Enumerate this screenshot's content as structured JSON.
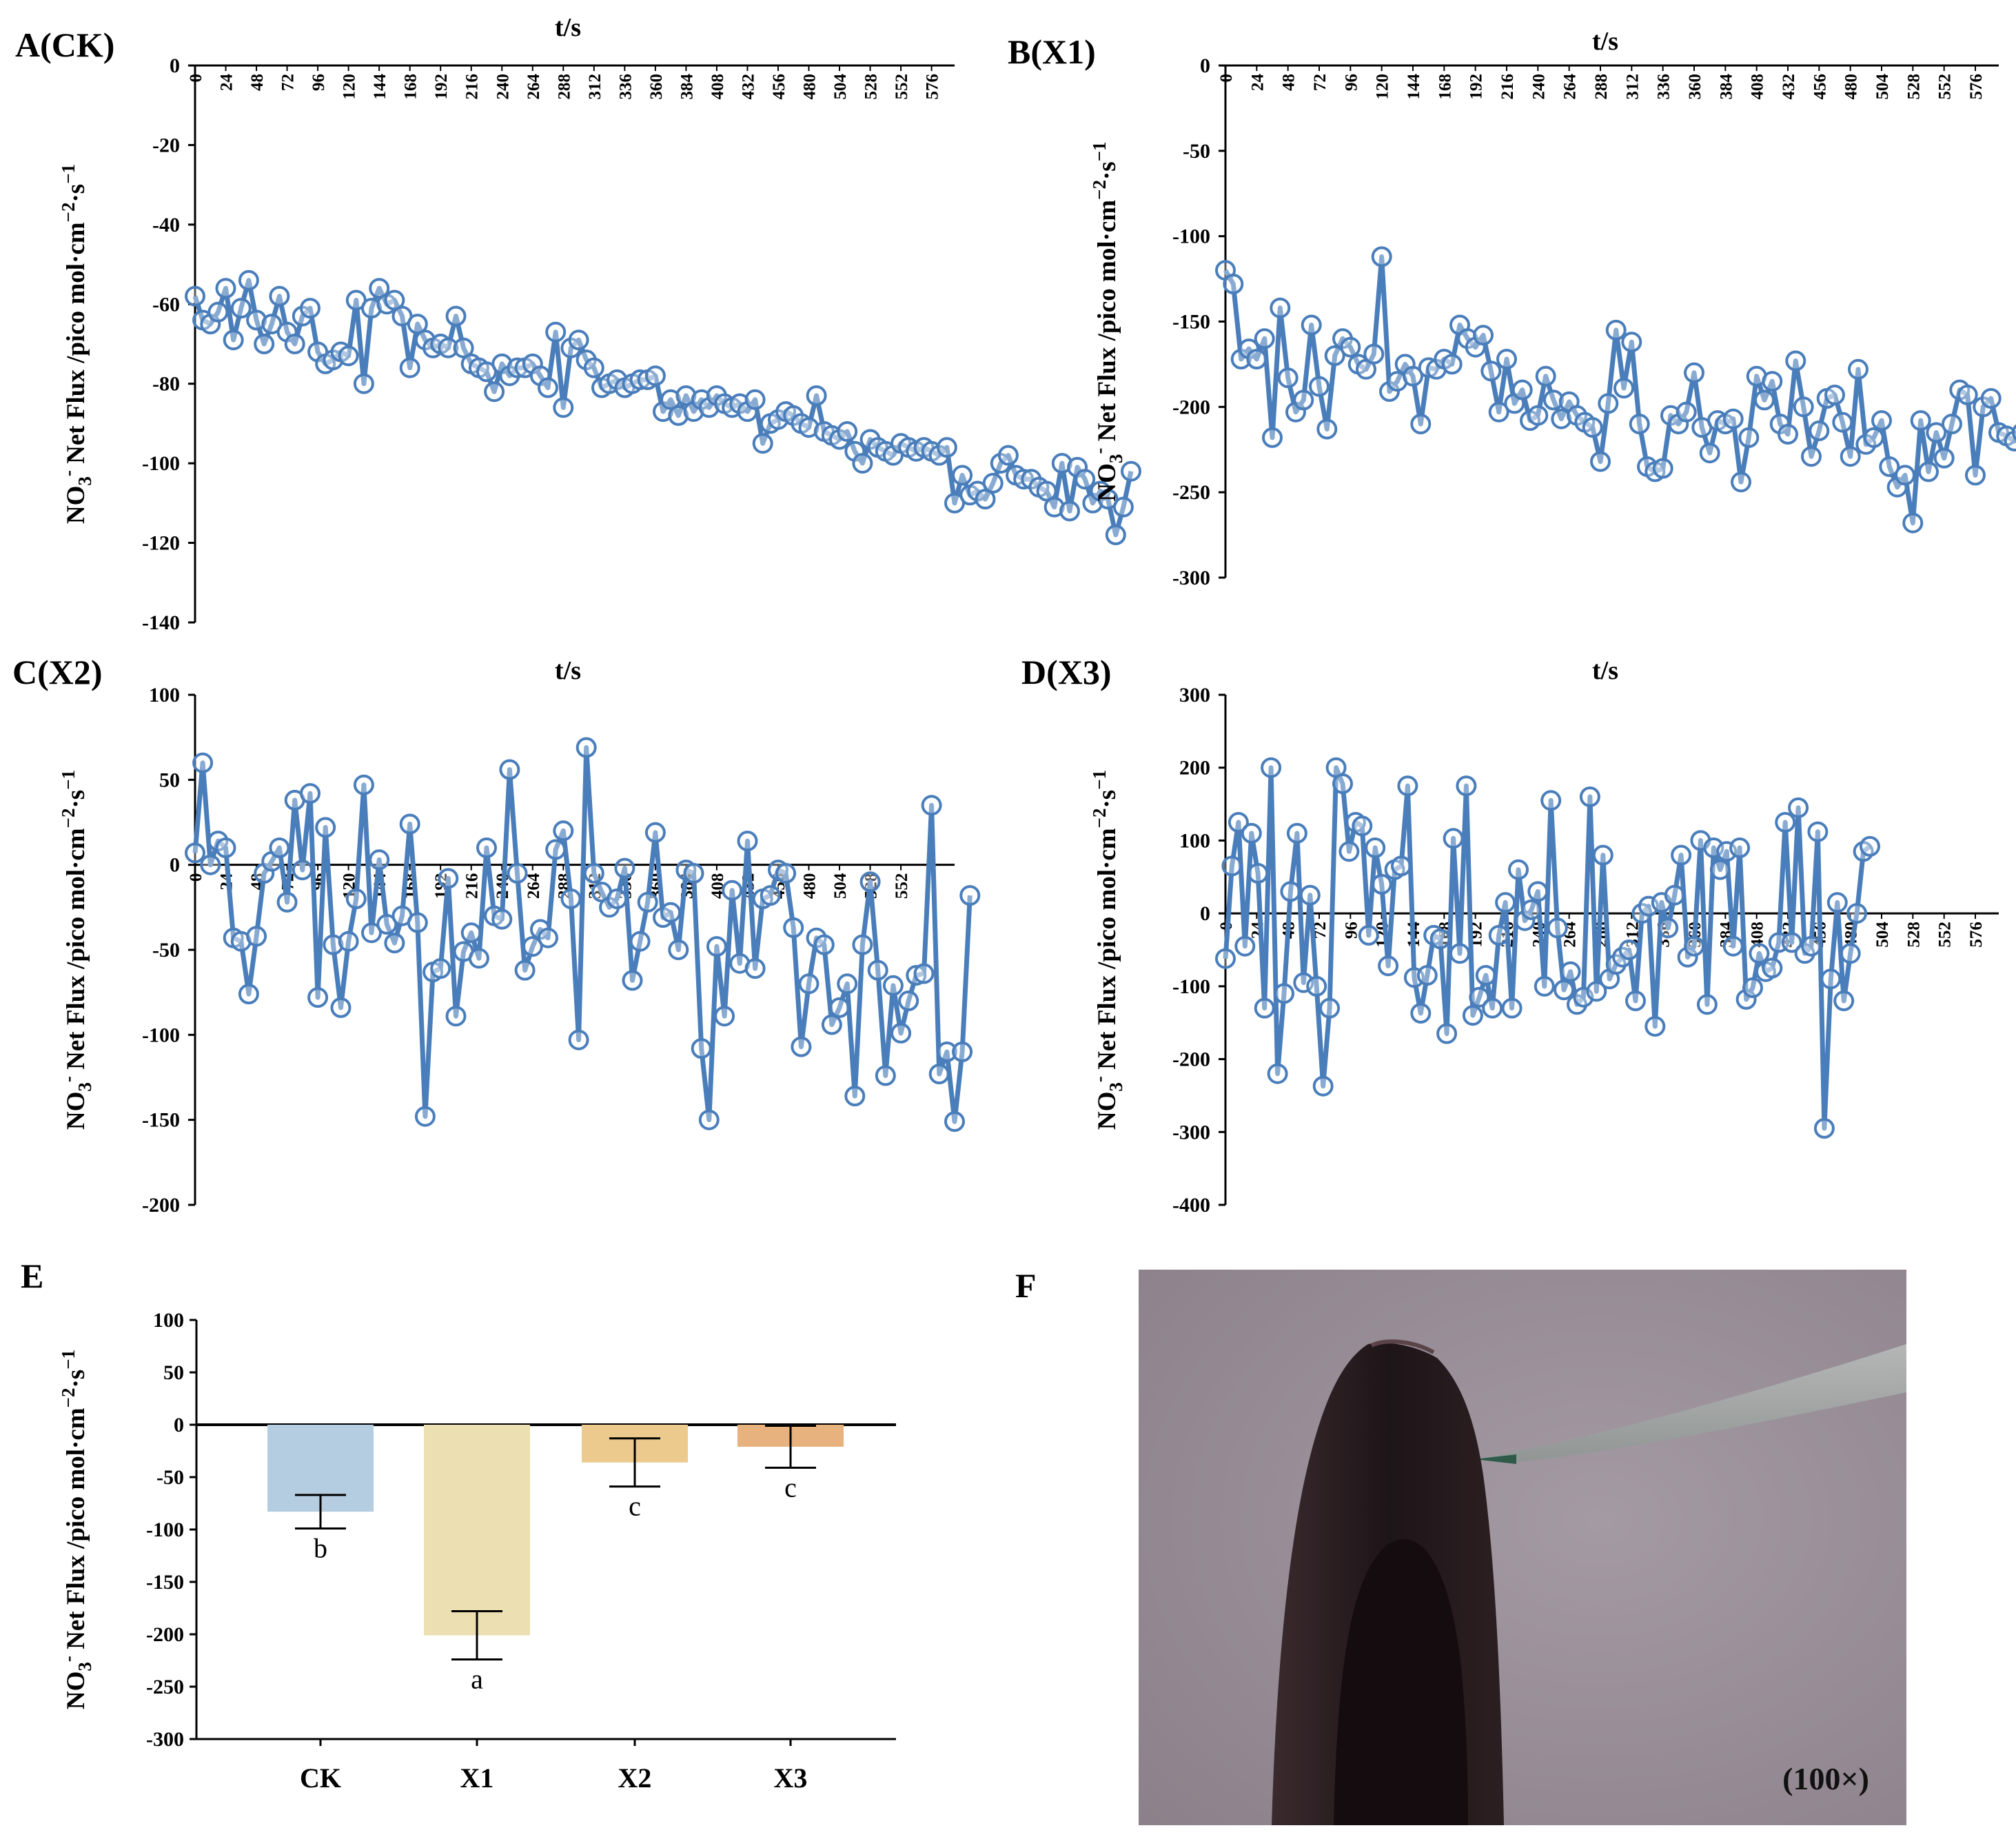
{
  "colors": {
    "series": "#4a7ebb",
    "bar_ck": "#b4cde0",
    "bar_x1": "#ecdfb2",
    "bar_x2": "#ecc98d",
    "bar_x3": "#e7b27d"
  },
  "photo": {
    "letter": "F",
    "magnification": "(100×)"
  },
  "chart_data": [
    {
      "panel": "A(CK)",
      "type": "line",
      "title": "",
      "xlabel": "t/s",
      "ylabel_main": "NO",
      "ylabel_sub": "3",
      "ylabel_sup": "-",
      "ylabel_rest": " Net Flux /pico mol·cm",
      "ylabel_sup2": "−2",
      "ylabel_mid": "·s",
      "ylabel_sup3": "−1",
      "ylim": [
        -140,
        0
      ],
      "yticks": [
        0,
        -20,
        -40,
        -60,
        -80,
        -100,
        -120,
        -140
      ],
      "xticks": [
        0,
        24,
        48,
        72,
        96,
        120,
        144,
        168,
        192,
        216,
        240,
        264,
        288,
        312,
        336,
        360,
        384,
        408,
        432,
        456,
        480,
        504,
        528,
        552,
        576
      ],
      "xmax": 594,
      "x_step": 6,
      "values": [
        -58,
        -64,
        -65,
        -62,
        -56,
        -69,
        -61,
        -54,
        -64,
        -70,
        -65,
        -58,
        -67,
        -70,
        -63,
        -61,
        -72,
        -75,
        -74,
        -72,
        -73,
        -59,
        -80,
        -61,
        -56,
        -60,
        -59,
        -63,
        -76,
        -65,
        -69,
        -71,
        -70,
        -71,
        -63,
        -71,
        -75,
        -76,
        -77,
        -82,
        -75,
        -78,
        -76,
        -76,
        -75,
        -78,
        -81,
        -67,
        -86,
        -71,
        -69,
        -74,
        -76,
        -81,
        -80,
        -79,
        -81,
        -80,
        -79,
        -79,
        -78,
        -87,
        -84,
        -88,
        -83,
        -87,
        -84,
        -86,
        -83,
        -85,
        -86,
        -85,
        -87,
        -84,
        -95,
        -90,
        -89,
        -87,
        -88,
        -90,
        -91,
        -83,
        -92,
        -93,
        -94,
        -92,
        -97,
        -100,
        -94,
        -96,
        -97,
        -98,
        -95,
        -96,
        -97,
        -96,
        -97,
        -98,
        -96,
        -110,
        -103,
        -108,
        -107,
        -109,
        -105,
        -100,
        -98,
        -103,
        -104,
        -104,
        -106,
        -107,
        -111,
        -100,
        -112,
        -101,
        -104,
        -110,
        -107,
        -109,
        -118,
        -111,
        -102
      ]
    },
    {
      "panel": "B(X1)",
      "type": "line",
      "title": "",
      "xlabel": "t/s",
      "ylabel_main": "NO",
      "ylabel_sub": "3",
      "ylabel_sup": "-",
      "ylabel_rest": " Net Flux /pico mol·cm",
      "ylabel_sup2": "−2",
      "ylabel_mid": "·s",
      "ylabel_sup3": "−1",
      "ylim": [
        -300,
        0
      ],
      "yticks": [
        0,
        -50,
        -100,
        -150,
        -200,
        -250,
        -300
      ],
      "xticks": [
        0,
        24,
        48,
        72,
        96,
        120,
        144,
        168,
        192,
        216,
        240,
        264,
        288,
        312,
        336,
        360,
        384,
        408,
        432,
        456,
        480,
        504,
        528,
        552,
        576
      ],
      "xmax": 594,
      "x_step": 6,
      "values": [
        -120,
        -128,
        -172,
        -166,
        -172,
        -160,
        -218,
        -142,
        -183,
        -203,
        -196,
        -152,
        -188,
        -213,
        -170,
        -160,
        -165,
        -175,
        -178,
        -169,
        -112,
        -191,
        -185,
        -175,
        -182,
        -210,
        -177,
        -178,
        -172,
        -175,
        -152,
        -160,
        -165,
        -158,
        -179,
        -203,
        -172,
        -198,
        -190,
        -208,
        -205,
        -182,
        -196,
        -207,
        -197,
        -205,
        -209,
        -212,
        -232,
        -198,
        -155,
        -189,
        -162,
        -210,
        -235,
        -238,
        -236,
        -205,
        -210,
        -203,
        -180,
        -212,
        -227,
        -208,
        -210,
        -207,
        -244,
        -218,
        -182,
        -196,
        -185,
        -210,
        -216,
        -173,
        -200,
        -229,
        -214,
        -195,
        -193,
        -209,
        -229,
        -178,
        -222,
        -218,
        -208,
        -235,
        -247,
        -240,
        -268,
        -208,
        -238,
        -215,
        -230,
        -210,
        -190,
        -193,
        -240,
        -200,
        -195,
        -215,
        -217,
        -220,
        -215,
        -208,
        -225,
        -255,
        -212,
        -245,
        -235,
        -228,
        -213,
        -241,
        -234,
        -240,
        -245
      ]
    },
    {
      "panel": "C(X2)",
      "type": "line",
      "title": "",
      "xlabel": "t/s",
      "ylabel_main": "NO",
      "ylabel_sub": "3",
      "ylabel_sup": "-",
      "ylabel_rest": " Net Flux /pico mol·cm",
      "ylabel_sup2": "−2",
      "ylabel_mid": "·s",
      "ylabel_sup3": "−1",
      "ylim": [
        -200,
        100
      ],
      "yticks": [
        100,
        50,
        0,
        -50,
        -100,
        -150,
        -200
      ],
      "xticks": [
        0,
        24,
        48,
        72,
        96,
        120,
        144,
        168,
        192,
        216,
        240,
        264,
        288,
        312,
        336,
        360,
        384,
        408,
        432,
        456,
        480,
        504,
        528,
        552
      ],
      "xmax": 594,
      "x_step": 6,
      "values": [
        7,
        60,
        0,
        14,
        10,
        -43,
        -45,
        -76,
        -42,
        -5,
        2,
        10,
        -22,
        38,
        -3,
        42,
        -78,
        22,
        -47,
        -84,
        -45,
        -20,
        47,
        -40,
        3,
        -35,
        -46,
        -30,
        24,
        -34,
        -148,
        -63,
        -61,
        -8,
        -89,
        -51,
        -40,
        -55,
        10,
        -30,
        -32,
        56,
        -5,
        -62,
        -48,
        -38,
        -43,
        9,
        20,
        -20,
        -103,
        69,
        -5,
        -16,
        -25,
        -20,
        -2,
        -68,
        -45,
        -22,
        19,
        -31,
        -28,
        -50,
        -3,
        -5,
        -108,
        -150,
        -48,
        -89,
        -15,
        -58,
        14,
        -61,
        -20,
        -18,
        -3,
        -5,
        -37,
        -107,
        -70,
        -43,
        -47,
        -94,
        -84,
        -70,
        -136,
        -47,
        -10,
        -62,
        -124,
        -71,
        -99,
        -80,
        -65,
        -64,
        35,
        -123,
        -110,
        -151,
        -110,
        -18
      ]
    },
    {
      "panel": "D(X3)",
      "type": "line",
      "title": "",
      "xlabel": "t/s",
      "ylabel_main": "NO",
      "ylabel_sub": "3",
      "ylabel_sup": "-",
      "ylabel_rest": " Net Flux /pico mol·cm",
      "ylabel_sup2": "−2",
      "ylabel_mid": "·s",
      "ylabel_sup3": "−1",
      "ylim": [
        -400,
        300
      ],
      "yticks": [
        300,
        200,
        100,
        0,
        -100,
        -200,
        -300,
        -400
      ],
      "xticks": [
        0,
        24,
        48,
        72,
        96,
        120,
        144,
        168,
        192,
        216,
        240,
        264,
        288,
        312,
        336,
        360,
        384,
        408,
        432,
        456,
        480,
        504,
        528,
        552,
        576
      ],
      "xmax": 594,
      "x_step": 5,
      "values": [
        -62,
        65,
        125,
        -45,
        110,
        55,
        -130,
        200,
        -220,
        -110,
        30,
        110,
        -95,
        25,
        -100,
        -237,
        -130,
        200,
        178,
        85,
        125,
        120,
        -30,
        90,
        40,
        -72,
        60,
        65,
        175,
        -88,
        -137,
        -85,
        -30,
        -35,
        -165,
        103,
        -55,
        175,
        -140,
        -115,
        -85,
        -130,
        -30,
        15,
        -130,
        60,
        -10,
        5,
        30,
        -100,
        155,
        -20,
        -105,
        -80,
        -125,
        -115,
        160,
        -107,
        80,
        -90,
        -70,
        -60,
        -50,
        -120,
        0,
        10,
        -155,
        15,
        -20,
        25,
        80,
        -60,
        -45,
        100,
        -125,
        90,
        60,
        85,
        -45,
        90,
        -118,
        -102,
        -55,
        -80,
        -75,
        -40,
        125,
        -40,
        145,
        -55,
        -45,
        112,
        -295,
        -90,
        15,
        -120,
        -55,
        0,
        85,
        92
      ]
    },
    {
      "panel": "E",
      "type": "bar",
      "title": "",
      "xlabel": "",
      "ylabel_main": "NO",
      "ylabel_sub": "3",
      "ylabel_sup": "-",
      "ylabel_rest": " Net Flux /pico mol·cm",
      "ylabel_sup2": "−2",
      "ylabel_mid": "·s",
      "ylabel_sup3": "−1",
      "ylim": [
        -300,
        100
      ],
      "yticks": [
        100,
        50,
        0,
        -50,
        -100,
        -150,
        -200,
        -250,
        -300
      ],
      "categories": [
        "CK",
        "X1",
        "X2",
        "X3"
      ],
      "values": [
        -83,
        -201,
        -36,
        -21
      ],
      "errors": [
        16,
        23,
        23,
        20
      ],
      "significance": [
        "b",
        "a",
        "c",
        "c"
      ]
    }
  ]
}
